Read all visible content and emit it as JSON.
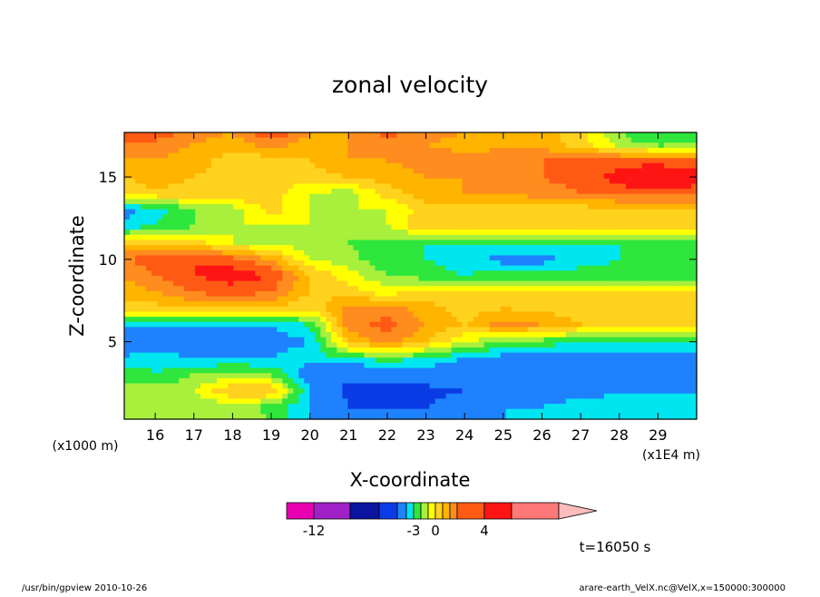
{
  "chart_data": {
    "type": "heatmap",
    "title": "zonal velocity",
    "xlabel": "X-coordinate",
    "ylabel": "Z-coordinate",
    "x_unit": "(x1E4 m)",
    "y_unit": "(x1000 m)",
    "xlim": [
      15.2,
      30.0
    ],
    "ylim": [
      0.3,
      17.7
    ],
    "x_ticks": [
      16,
      17,
      18,
      19,
      20,
      21,
      22,
      23,
      24,
      25,
      26,
      27,
      28,
      29
    ],
    "y_ticks": [
      5,
      10,
      15
    ],
    "colorbar": {
      "labels": [
        {
          "value": -12,
          "text": "-12"
        },
        {
          "value": -3,
          "text": "-3"
        },
        {
          "value": 0,
          "text": "0"
        },
        {
          "value": 4,
          "text": "4"
        }
      ],
      "levels": [
        -12,
        -10,
        -8,
        -6,
        -4,
        -3,
        -2,
        -1,
        0,
        1,
        2,
        3,
        4,
        6,
        8
      ],
      "colors": [
        "#e800b0",
        "#a020c8",
        "#0a14a0",
        "#0a3ce6",
        "#1e82ff",
        "#00e6f0",
        "#2ee63c",
        "#a8f03c",
        "#ffff00",
        "#ffd21e",
        "#ffb400",
        "#ff8c1e",
        "#ff5a14",
        "#ff1414",
        "#ff7878",
        "#ffbcbc"
      ]
    },
    "field": {
      "x": [
        15.2,
        16,
        17,
        18,
        19,
        20,
        21,
        22,
        23,
        24,
        25,
        26,
        27,
        28,
        29,
        30
      ],
      "z": [
        0.3,
        1,
        2,
        3,
        4,
        5,
        6,
        7,
        8,
        9,
        10,
        11,
        12,
        13,
        14,
        15,
        16,
        17,
        17.7
      ],
      "values": [
        [
          -1.5,
          -1,
          -1,
          -1,
          -2,
          -4,
          -4,
          -4,
          -5,
          -5,
          -4,
          -4,
          -3,
          -3,
          -3,
          -3
        ],
        [
          -1.5,
          -1.5,
          -2,
          -1.5,
          -2.5,
          -4,
          -6,
          -6,
          -6,
          -5,
          -4,
          -4,
          -3.5,
          -3.5,
          -3.5,
          -3.5
        ],
        [
          -2,
          -1.5,
          -1,
          1,
          1,
          -4,
          -6.5,
          -6.5,
          -6.5,
          -6,
          -4.5,
          -4.5,
          -4.5,
          -4,
          -4,
          -4
        ],
        [
          -2,
          -3,
          -2,
          -1.5,
          -2,
          -5,
          -5.5,
          -5.5,
          -5,
          -5,
          -4.5,
          -4.5,
          -4.5,
          -4.5,
          -4.5,
          -4.5
        ],
        [
          -4,
          -3.5,
          -4,
          -4,
          -4,
          -3.5,
          -3,
          -2.5,
          -3,
          -4,
          -4.5,
          -4.5,
          -4.5,
          -4.5,
          -4.5,
          -4.5
        ],
        [
          -4.5,
          -4.5,
          -5,
          -5.5,
          -4.5,
          -4,
          1,
          2.5,
          1,
          -1,
          -2,
          -2.5,
          -3,
          -3,
          -3,
          -3
        ],
        [
          -4,
          -4,
          -4,
          -4,
          -4,
          -3,
          2.5,
          3.5,
          2,
          1,
          2.5,
          2,
          1,
          0.5,
          0.5,
          0.5
        ],
        [
          0.5,
          0.5,
          1,
          1,
          1,
          0,
          2.5,
          2.5,
          1.5,
          0.5,
          1,
          0.8,
          0.5,
          0.5,
          0.5,
          1
        ],
        [
          1.5,
          2,
          3,
          3.5,
          3,
          1,
          0.5,
          -0.5,
          0.5,
          0.5,
          0.3,
          0.2,
          0.2,
          0.2,
          0.2,
          0.2
        ],
        [
          2,
          3,
          4,
          4.5,
          4,
          1,
          -0.5,
          -2,
          -2.5,
          -3,
          -2.5,
          -2.5,
          -2.5,
          -2.5,
          -2.5,
          -2.5
        ],
        [
          3,
          3.5,
          4,
          3.5,
          2,
          -1,
          -1.5,
          -3,
          -3,
          -3.5,
          -4.5,
          -4.5,
          -3.5,
          -3,
          -3,
          -3
        ],
        [
          0.5,
          1,
          0.5,
          -1,
          -1.5,
          -1.5,
          -2,
          -2.5,
          -3,
          -3,
          -3,
          -3,
          -3,
          -3,
          -3,
          -3
        ],
        [
          -3.5,
          -3,
          -2,
          -1,
          -1,
          -1,
          -1.5,
          -1,
          1,
          1,
          1,
          1,
          1,
          1,
          1,
          1
        ],
        [
          -4.5,
          -3.5,
          -2,
          -1.5,
          0.5,
          -1,
          -1,
          -1,
          0.5,
          0.5,
          0.5,
          0.5,
          0.5,
          0.5,
          0.5,
          0.5
        ],
        [
          0.5,
          0.8,
          0.5,
          1,
          0.5,
          -1,
          -1.5,
          0.5,
          1.5,
          2,
          2,
          2.5,
          3,
          3.5,
          3.5,
          3.5
        ],
        [
          1,
          1.5,
          1,
          0.5,
          0.3,
          0.5,
          1,
          1.5,
          2,
          2,
          2.5,
          3,
          3.5,
          4.5,
          5.5,
          4.5
        ],
        [
          2,
          2,
          1.5,
          0.5,
          0.5,
          1,
          2,
          2,
          2.5,
          2.5,
          3,
          3,
          3,
          3.5,
          3.5,
          3
        ],
        [
          2.5,
          2.5,
          2,
          1.5,
          2.5,
          1.5,
          2,
          2.5,
          2,
          1.5,
          1.5,
          1.5,
          0.5,
          -1.5,
          -2.5,
          -2
        ],
        [
          4,
          4,
          2.5,
          2,
          4,
          2,
          2,
          3.5,
          2.5,
          2,
          1.5,
          1.5,
          0.5,
          -2,
          -3,
          -2.5
        ]
      ]
    }
  },
  "stamp_text": "t=16050 s",
  "footer": {
    "left": "/usr/bin/gpview   2010-10-26",
    "right": "arare-earth_VelX.nc@VelX,x=150000:300000"
  }
}
